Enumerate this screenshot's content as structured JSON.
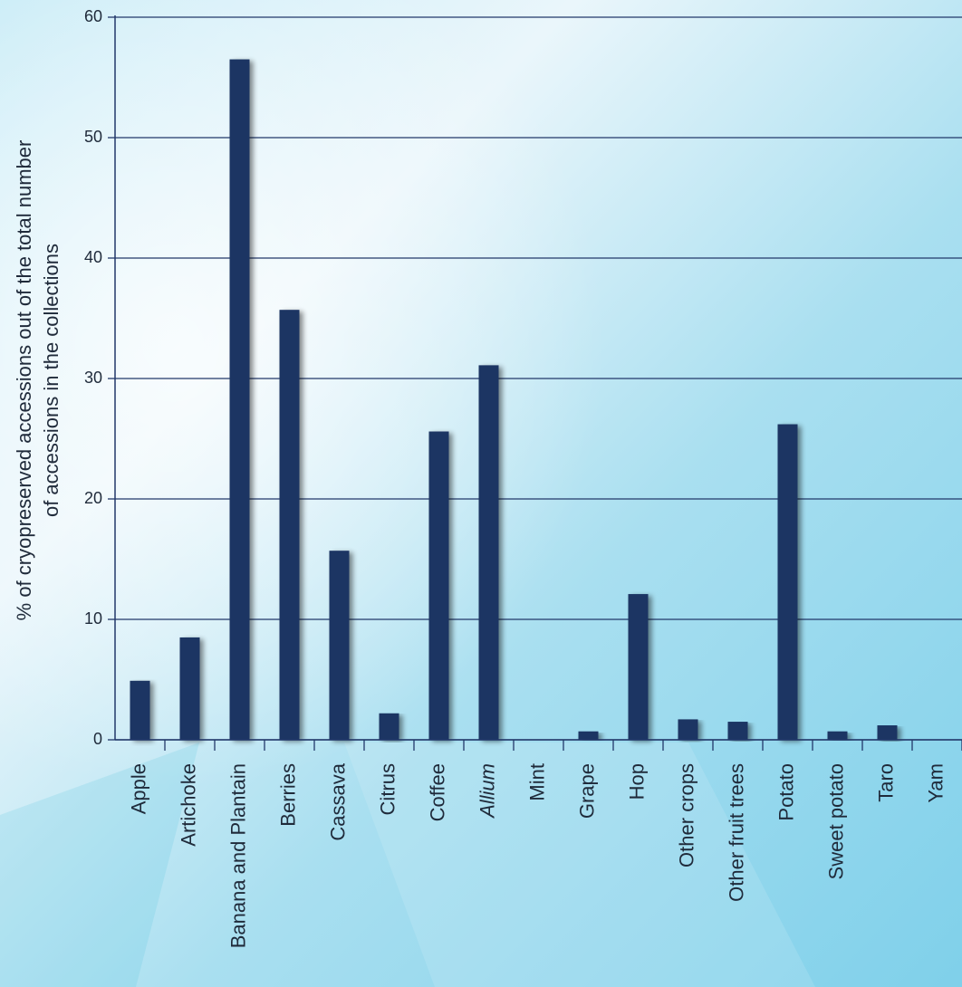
{
  "colors": {
    "bar": "#1b3464",
    "gridline": "#22386a",
    "axis": "#22386a",
    "text": "#1f2a3a",
    "background_light": "#e6f5fb",
    "background_dark": "#86d3ea"
  },
  "chart_data": {
    "type": "bar",
    "ylabel_line1": "% of cryopreserved accessions out of the total number",
    "ylabel_line2": "of accessions in the collections",
    "xlabel": "",
    "ylim": [
      0,
      60
    ],
    "y_ticks": [
      "0",
      "10",
      "20",
      "30",
      "40",
      "50",
      "60"
    ],
    "grid": true,
    "categories": [
      "Apple",
      "Artichoke",
      "Banana and Plantain",
      "Berries",
      "Cassava",
      "Citrus",
      "Coffee",
      "Allium",
      "Mint",
      "Grape",
      "Hop",
      "Other crops",
      "Other fruit trees",
      "Potato",
      "Sweet potato",
      "Taro",
      "Yam"
    ],
    "italic_categories": [
      "Allium"
    ],
    "values": [
      4.9,
      8.5,
      56.5,
      35.7,
      15.7,
      2.2,
      25.6,
      31.1,
      0,
      0.7,
      12.1,
      1.7,
      1.5,
      26.2,
      0.7,
      1.2,
      0
    ]
  }
}
